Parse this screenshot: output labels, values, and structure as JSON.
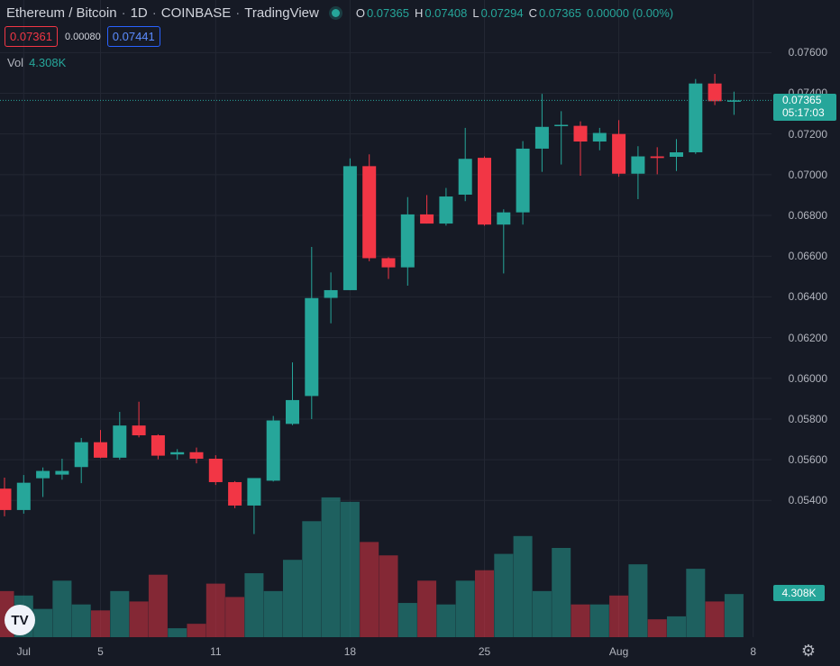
{
  "header": {
    "pair": "Ethereum / Bitcoin",
    "interval": "1D",
    "exchange": "COINBASE",
    "platform": "TradingView",
    "ohlc": {
      "o_label": "O",
      "o_value": "0.07365",
      "h_label": "H",
      "h_value": "0.07408",
      "l_label": "L",
      "l_value": "0.07294",
      "c_label": "C",
      "c_value": "0.07365",
      "change": "0.00000 (0.00%)"
    }
  },
  "trade": {
    "sell": "0.07361",
    "spread": "0.00080",
    "buy": "0.07441"
  },
  "volume": {
    "label": "Vol",
    "value": "4.308K"
  },
  "last_price": {
    "price": "0.07365",
    "countdown": "05:17:03"
  },
  "volume_badge": "4.308K",
  "colors": {
    "up": "#26a69a",
    "down": "#f23645",
    "background": "#161a25",
    "grid": "#232733"
  },
  "chart_data": {
    "type": "candlestick",
    "y_ticks": [
      "0.07600",
      "0.07400",
      "0.07200",
      "0.07000",
      "0.06800",
      "0.06600",
      "0.06400",
      "0.06200",
      "0.06000",
      "0.05800",
      "0.05600",
      "0.05400"
    ],
    "x_ticks": [
      {
        "label": "Jul",
        "index": 1
      },
      {
        "label": "5",
        "index": 5
      },
      {
        "label": "11",
        "index": 11
      },
      {
        "label": "18",
        "index": 18
      },
      {
        "label": "25",
        "index": 25
      },
      {
        "label": "Aug",
        "index": 32
      },
      {
        "label": "8",
        "index": 39
      }
    ],
    "ylim": [
      0.0518,
      0.0767
    ],
    "candles": [
      {
        "o": 0.05458,
        "h": 0.05512,
        "l": 0.05322,
        "c": 0.05353,
        "v": 1.55
      },
      {
        "o": 0.05353,
        "h": 0.05525,
        "l": 0.05335,
        "c": 0.05487,
        "v": 1.4
      },
      {
        "o": 0.05509,
        "h": 0.05562,
        "l": 0.05417,
        "c": 0.05545,
        "v": 0.95
      },
      {
        "o": 0.05527,
        "h": 0.05605,
        "l": 0.05502,
        "c": 0.05545,
        "v": 1.9
      },
      {
        "o": 0.05564,
        "h": 0.05707,
        "l": 0.05485,
        "c": 0.05686,
        "v": 1.1
      },
      {
        "o": 0.05686,
        "h": 0.05746,
        "l": 0.05608,
        "c": 0.0561,
        "v": 0.9
      },
      {
        "o": 0.0561,
        "h": 0.05835,
        "l": 0.056,
        "c": 0.05768,
        "v": 1.55
      },
      {
        "o": 0.05768,
        "h": 0.05885,
        "l": 0.0571,
        "c": 0.0572,
        "v": 1.2
      },
      {
        "o": 0.0572,
        "h": 0.05725,
        "l": 0.05602,
        "c": 0.0562,
        "v": 2.1
      },
      {
        "o": 0.05626,
        "h": 0.05652,
        "l": 0.056,
        "c": 0.05637,
        "v": 0.3
      },
      {
        "o": 0.05637,
        "h": 0.0566,
        "l": 0.05582,
        "c": 0.05605,
        "v": 0.45
      },
      {
        "o": 0.05605,
        "h": 0.05622,
        "l": 0.05476,
        "c": 0.0549,
        "v": 1.8
      },
      {
        "o": 0.0549,
        "h": 0.05495,
        "l": 0.05362,
        "c": 0.05375,
        "v": 1.35
      },
      {
        "o": 0.05375,
        "h": 0.05505,
        "l": 0.05235,
        "c": 0.0551,
        "v": 2.15
      },
      {
        "o": 0.05497,
        "h": 0.05815,
        "l": 0.05493,
        "c": 0.05793,
        "v": 1.55
      },
      {
        "o": 0.05776,
        "h": 0.06078,
        "l": 0.0577,
        "c": 0.05893,
        "v": 2.6
      },
      {
        "o": 0.05913,
        "h": 0.06645,
        "l": 0.058,
        "c": 0.06394,
        "v": 3.9
      },
      {
        "o": 0.06395,
        "h": 0.0652,
        "l": 0.0627,
        "c": 0.06433,
        "v": 4.7
      },
      {
        "o": 0.06433,
        "h": 0.0708,
        "l": 0.06433,
        "c": 0.07042,
        "v": 4.55
      },
      {
        "o": 0.07042,
        "h": 0.071,
        "l": 0.06575,
        "c": 0.0659,
        "v": 3.2
      },
      {
        "o": 0.0659,
        "h": 0.06595,
        "l": 0.06488,
        "c": 0.06545,
        "v": 2.75
      },
      {
        "o": 0.06545,
        "h": 0.0689,
        "l": 0.06455,
        "c": 0.06805,
        "v": 1.15
      },
      {
        "o": 0.06805,
        "h": 0.069,
        "l": 0.0676,
        "c": 0.0676,
        "v": 1.9
      },
      {
        "o": 0.0676,
        "h": 0.06935,
        "l": 0.0675,
        "c": 0.06893,
        "v": 1.1
      },
      {
        "o": 0.06902,
        "h": 0.0723,
        "l": 0.0687,
        "c": 0.07078,
        "v": 1.9
      },
      {
        "o": 0.07083,
        "h": 0.0709,
        "l": 0.0675,
        "c": 0.06755,
        "v": 2.25
      },
      {
        "o": 0.06755,
        "h": 0.0683,
        "l": 0.06515,
        "c": 0.06815,
        "v": 2.8
      },
      {
        "o": 0.06815,
        "h": 0.07165,
        "l": 0.06755,
        "c": 0.07128,
        "v": 3.4
      },
      {
        "o": 0.07128,
        "h": 0.07397,
        "l": 0.07014,
        "c": 0.07235,
        "v": 1.55
      },
      {
        "o": 0.0724,
        "h": 0.07312,
        "l": 0.0705,
        "c": 0.07245,
        "v": 3.0
      },
      {
        "o": 0.0724,
        "h": 0.07262,
        "l": 0.06995,
        "c": 0.07163,
        "v": 1.1
      },
      {
        "o": 0.07163,
        "h": 0.0723,
        "l": 0.0712,
        "c": 0.07205,
        "v": 1.1
      },
      {
        "o": 0.072,
        "h": 0.07268,
        "l": 0.0699,
        "c": 0.07005,
        "v": 1.4
      },
      {
        "o": 0.07005,
        "h": 0.0714,
        "l": 0.0688,
        "c": 0.0709,
        "v": 2.45
      },
      {
        "o": 0.0709,
        "h": 0.07135,
        "l": 0.07002,
        "c": 0.07082,
        "v": 0.6
      },
      {
        "o": 0.07088,
        "h": 0.07175,
        "l": 0.07018,
        "c": 0.0711,
        "v": 0.7
      },
      {
        "o": 0.0711,
        "h": 0.0747,
        "l": 0.07102,
        "c": 0.07448,
        "v": 2.3
      },
      {
        "o": 0.07448,
        "h": 0.07495,
        "l": 0.07342,
        "c": 0.07361,
        "v": 1.2
      },
      {
        "o": 0.07365,
        "h": 0.07408,
        "l": 0.07294,
        "c": 0.07365,
        "v": 1.45
      }
    ]
  }
}
